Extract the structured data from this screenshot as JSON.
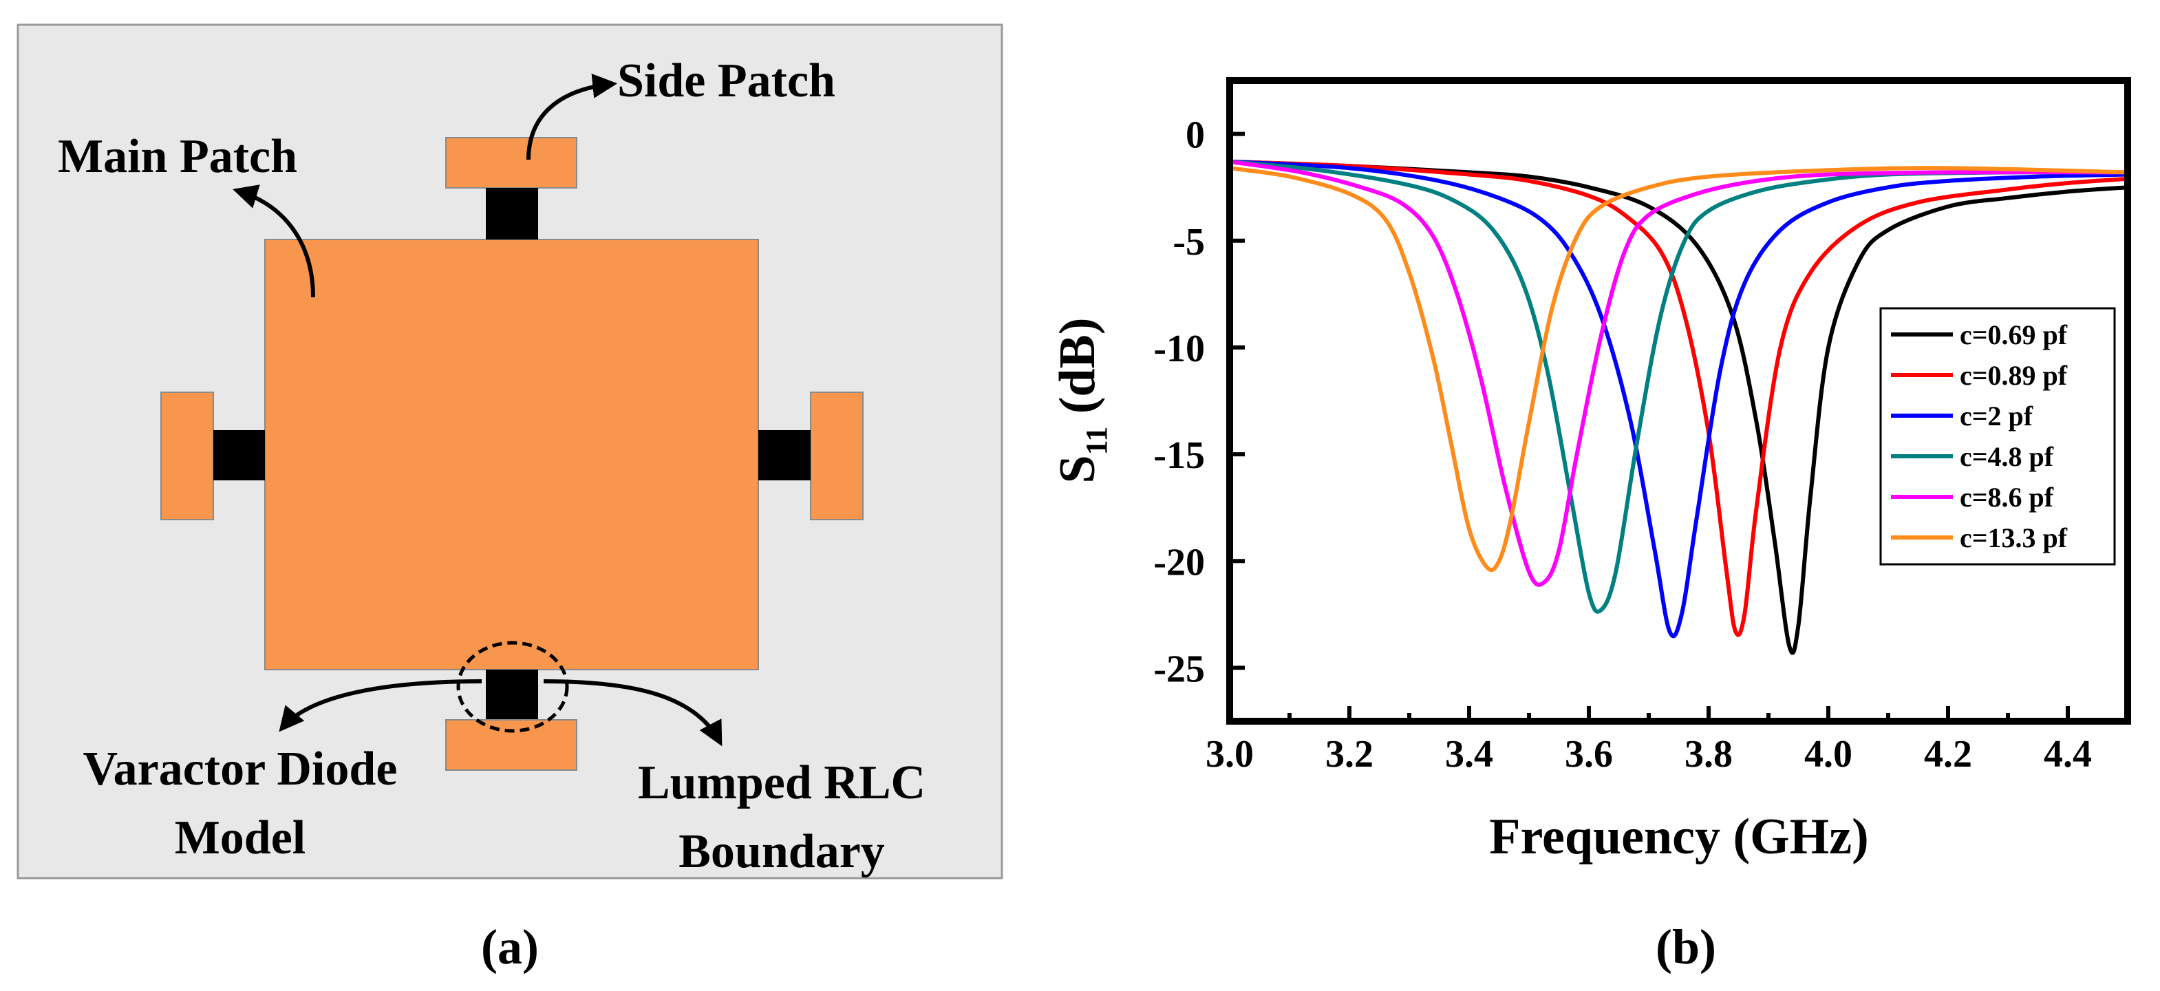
{
  "panel_a": {
    "caption": "(a)",
    "background_color": "#e8e8e8",
    "patch_color": "#f9964d",
    "diode_color": "#000000",
    "labels": {
      "side_patch": "Side Patch",
      "main_patch": "Main Patch",
      "varactor_line1": "Varactor Diode",
      "varactor_line2": "Model",
      "lumped_line1": "Lumped RLC",
      "lumped_line2": "Boundary"
    }
  },
  "panel_b": {
    "caption": "(b)"
  },
  "chart_data": {
    "type": "line",
    "title": "",
    "xlabel": "Frequency (GHz)",
    "ylabel_main": "S",
    "ylabel_sub": "11",
    "ylabel_unit": " (dB)",
    "xlim": [
      3.0,
      4.5
    ],
    "ylim": [
      -27.5,
      2.5
    ],
    "xticks": [
      3.0,
      3.2,
      3.4,
      3.6,
      3.8,
      4.0,
      4.2,
      4.4
    ],
    "xtick_labels": [
      "3.0",
      "3.2",
      "3.4",
      "3.6",
      "3.8",
      "4.0",
      "4.2",
      "4.4"
    ],
    "yticks": [
      0,
      -5,
      -10,
      -15,
      -20,
      -25
    ],
    "ytick_labels": [
      "0",
      "-5",
      "-10",
      "-15",
      "-20",
      "-25"
    ],
    "grid": false,
    "legend_position": "right",
    "series": [
      {
        "name": "c=0.69 pf",
        "color": "#000000",
        "x": [
          3.0,
          3.2,
          3.4,
          3.5,
          3.6,
          3.7,
          3.78,
          3.84,
          3.88,
          3.91,
          3.935,
          3.95,
          3.97,
          4.0,
          4.05,
          4.1,
          4.2,
          4.3,
          4.4,
          4.5
        ],
        "y": [
          -1.3,
          -1.5,
          -1.8,
          -2.0,
          -2.5,
          -3.4,
          -5.2,
          -8.5,
          -13.5,
          -19.0,
          -24.0,
          -23.0,
          -17.0,
          -10.0,
          -6.0,
          -4.5,
          -3.4,
          -3.0,
          -2.7,
          -2.5
        ]
      },
      {
        "name": "c=0.89 pf",
        "color": "#ff0000",
        "x": [
          3.0,
          3.2,
          3.4,
          3.5,
          3.6,
          3.66,
          3.72,
          3.76,
          3.8,
          3.83,
          3.845,
          3.86,
          3.88,
          3.92,
          3.97,
          4.05,
          4.15,
          4.3,
          4.4,
          4.5
        ],
        "y": [
          -1.3,
          -1.5,
          -1.9,
          -2.2,
          -2.9,
          -3.8,
          -5.5,
          -8.5,
          -14.0,
          -20.5,
          -23.3,
          -22.5,
          -17.5,
          -10.0,
          -6.5,
          -4.3,
          -3.2,
          -2.6,
          -2.3,
          -2.1
        ]
      },
      {
        "name": "c=2 pf",
        "color": "#0000ff",
        "x": [
          3.0,
          3.2,
          3.35,
          3.45,
          3.52,
          3.57,
          3.62,
          3.67,
          3.71,
          3.735,
          3.755,
          3.78,
          3.82,
          3.86,
          3.92,
          4.0,
          4.1,
          4.2,
          4.35,
          4.5
        ],
        "y": [
          -1.3,
          -1.6,
          -2.2,
          -3.0,
          -4.0,
          -5.6,
          -8.5,
          -13.5,
          -19.5,
          -23.3,
          -22.5,
          -18.0,
          -11.0,
          -7.0,
          -4.5,
          -3.2,
          -2.5,
          -2.2,
          -2.0,
          -1.9
        ]
      },
      {
        "name": "c=4.8 pf",
        "color": "#008080",
        "x": [
          3.0,
          3.15,
          3.3,
          3.38,
          3.44,
          3.49,
          3.53,
          3.57,
          3.6,
          3.62,
          3.645,
          3.68,
          3.72,
          3.76,
          3.8,
          3.88,
          3.98,
          4.1,
          4.3,
          4.5
        ],
        "y": [
          -1.3,
          -1.7,
          -2.4,
          -3.2,
          -4.5,
          -7.0,
          -11.0,
          -17.0,
          -21.5,
          -22.3,
          -20.5,
          -14.5,
          -8.5,
          -5.0,
          -3.6,
          -2.7,
          -2.2,
          -1.9,
          -1.8,
          -1.8
        ]
      },
      {
        "name": "c=8.6 pf",
        "color": "#ff00ff",
        "x": [
          3.0,
          3.12,
          3.22,
          3.29,
          3.34,
          3.38,
          3.42,
          3.46,
          3.5,
          3.525,
          3.55,
          3.58,
          3.62,
          3.66,
          3.7,
          3.78,
          3.88,
          4.0,
          4.2,
          4.5
        ],
        "y": [
          -1.3,
          -1.8,
          -2.5,
          -3.3,
          -4.8,
          -7.5,
          -11.5,
          -16.5,
          -20.5,
          -21.0,
          -19.5,
          -15.0,
          -9.5,
          -5.5,
          -3.8,
          -2.8,
          -2.2,
          -1.9,
          -1.8,
          -1.8
        ]
      },
      {
        "name": "c=13.3 pf",
        "color": "#ff8c1a",
        "x": [
          3.0,
          3.1,
          3.2,
          3.26,
          3.3,
          3.34,
          3.37,
          3.4,
          3.43,
          3.45,
          3.47,
          3.5,
          3.54,
          3.58,
          3.62,
          3.7,
          3.8,
          4.0,
          4.2,
          4.5
        ],
        "y": [
          -1.6,
          -2.0,
          -2.8,
          -4.0,
          -6.5,
          -10.5,
          -14.5,
          -18.5,
          -20.3,
          -20.0,
          -18.0,
          -13.5,
          -8.0,
          -4.8,
          -3.4,
          -2.5,
          -2.0,
          -1.7,
          -1.6,
          -1.8
        ]
      }
    ]
  }
}
